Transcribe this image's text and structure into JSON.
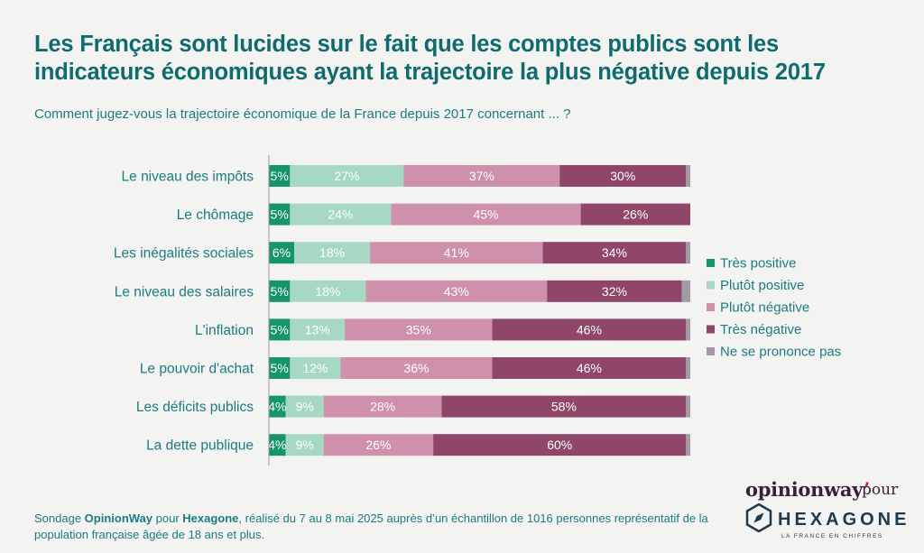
{
  "title": "Les Français sont lucides sur le fait que les comptes publics sont les indicateurs économiques ayant la trajectoire la plus négative depuis 2017",
  "subtitle": "Comment jugez-vous la trajectoire économique de la France depuis 2017 concernant ... ?",
  "footer": {
    "prefix": "Sondage ",
    "brand1": "OpinionWay",
    "mid1": " pour ",
    "brand2": "Hexagone",
    "rest": ", réalisé du 7 au 8 mai 2025 auprès d’un échantillon de 1016 personnes représentatif de la population française âgée de 18 ans et plus."
  },
  "logos": {
    "opinionway": "opinionway",
    "pour": "pour",
    "hexagone": "HEXAGONE",
    "hexagone_sub": "LA FRANCE EN CHIFFRES"
  },
  "chart_data": {
    "type": "bar",
    "orientation": "horizontal-stacked-100",
    "categories": [
      "Le niveau des impôts",
      "Le chômage",
      "Les inégalités sociales",
      "Le niveau des salaires",
      "L'inflation",
      "Le pouvoir d'achat",
      "Les déficits publics",
      "La dette publique"
    ],
    "series": [
      {
        "name": "Très positive",
        "color": "#16946b",
        "label_color": "#ffffff",
        "values": [
          5,
          5,
          6,
          5,
          5,
          5,
          4,
          4
        ]
      },
      {
        "name": "Plutôt positive",
        "color": "#a6d8c4",
        "label_color": "#ffffff",
        "values": [
          27,
          24,
          18,
          18,
          13,
          12,
          9,
          9
        ]
      },
      {
        "name": "Plutôt négative",
        "color": "#cf90ab",
        "label_color": "#ffffff",
        "values": [
          37,
          45,
          41,
          43,
          35,
          36,
          28,
          26
        ]
      },
      {
        "name": "Très négative",
        "color": "#8f4668",
        "label_color": "#ffffff",
        "values": [
          30,
          26,
          34,
          32,
          46,
          46,
          58,
          60
        ]
      },
      {
        "name": "Ne se prononce pas",
        "color": "#a39aa8",
        "label_color": "#ffffff",
        "values": [
          1,
          0,
          1,
          2,
          1,
          1,
          1,
          1
        ]
      }
    ],
    "value_labels": [
      [
        "5%",
        "27%",
        "37%",
        "30%",
        ""
      ],
      [
        "5%",
        "24%",
        "45%",
        "26%",
        ""
      ],
      [
        "6%",
        "18%",
        "41%",
        "34%",
        ""
      ],
      [
        "5%",
        "18%",
        "43%",
        "32%",
        ""
      ],
      [
        "5%",
        "13%",
        "35%",
        "46%",
        ""
      ],
      [
        "5%",
        "12%",
        "36%",
        "46%",
        ""
      ],
      [
        "4%",
        "9%",
        "28%",
        "58%",
        ""
      ],
      [
        "4%",
        "9%",
        "26%",
        "60%",
        ""
      ]
    ],
    "legend_position": "right",
    "label_color": "#1b7c80"
  }
}
